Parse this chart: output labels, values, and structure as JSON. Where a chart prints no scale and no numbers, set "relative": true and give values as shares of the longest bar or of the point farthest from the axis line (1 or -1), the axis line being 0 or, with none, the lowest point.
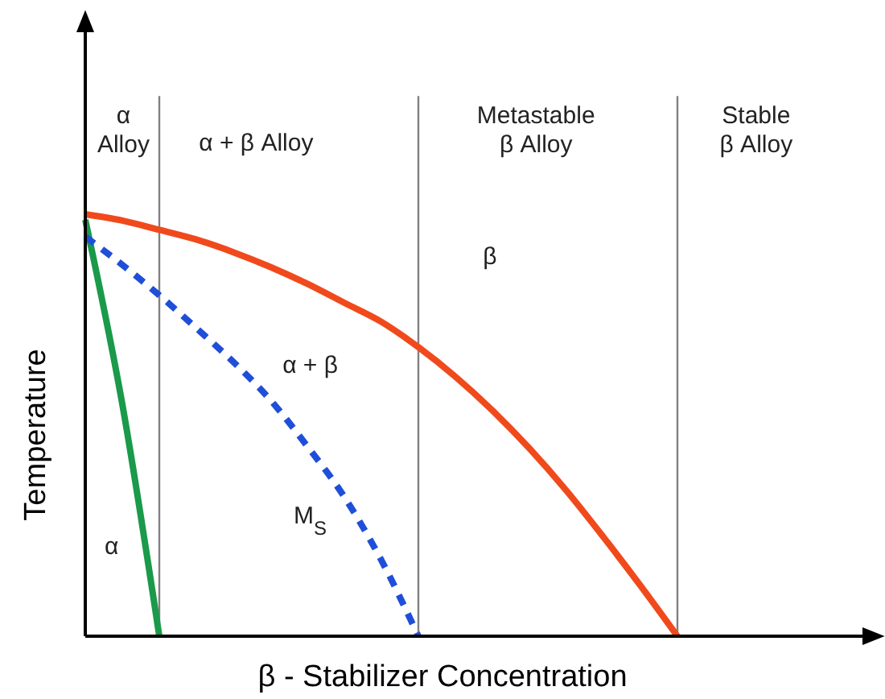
{
  "chart_data": {
    "type": "line",
    "relative": true,
    "xlabel": "β - Stabilizer Concentration",
    "ylabel": "Temperature",
    "marker": "none",
    "grid": "x",
    "categories": [
      null,
      null,
      null,
      null,
      null,
      null,
      null,
      null,
      null,
      null,
      null,
      null,
      null,
      null,
      null,
      null,
      null,
      null,
      null,
      null,
      null,
      null
    ],
    "series": [
      {
        "color": "#f04a1c",
        "line_style": "solid",
        "values": [
          1,
          0.985,
          0.963,
          0.94,
          0.91,
          0.875,
          0.835,
          0.79,
          0.745,
          0.685,
          0.615,
          0.535,
          0.445,
          0.345,
          0.235,
          0.12,
          0,
          null,
          null,
          null,
          null,
          null
        ]
      },
      {
        "color": "#1a9a4a",
        "line_style": "solid",
        "values": [
          0.987,
          0.55,
          0,
          null,
          null,
          null,
          null,
          null,
          null,
          null,
          null,
          null,
          null,
          null,
          null,
          null,
          null,
          null,
          null,
          null,
          null,
          null
        ]
      },
      {
        "color": "#1f4fd8",
        "line_style": "dashed",
        "values": [
          0.947,
          0.88,
          0.808,
          0.73,
          0.65,
          0.56,
          0.45,
          0.33,
          0.18,
          0,
          null,
          null,
          null,
          null,
          null,
          null,
          null,
          null,
          null,
          null,
          null,
          null
        ]
      }
    ],
    "annotations": [
      "α\nAlloy",
      "α + β Alloy",
      "Metastable\nβ Alloy",
      "Stable\nβ Alloy",
      "β",
      "α + β",
      "M$_{S}$",
      "α"
    ]
  }
}
